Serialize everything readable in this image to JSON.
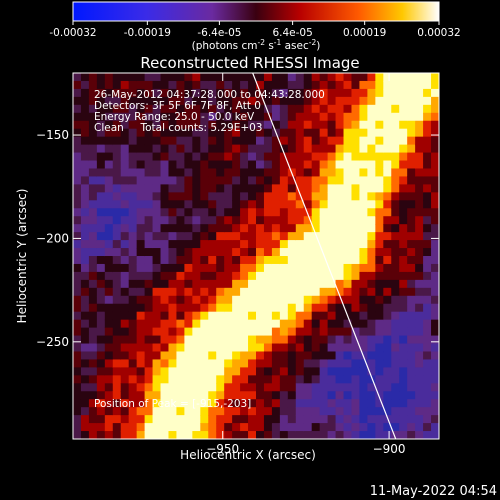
{
  "colorbar": {
    "ticks": [
      {
        "label": "-0.00032",
        "value": -0.00032
      },
      {
        "label": "-0.00019",
        "value": -0.00019
      },
      {
        "label": "-6.4e-05",
        "value": -6.4e-05
      },
      {
        "label": "6.4e-05",
        "value": 6.4e-05
      },
      {
        "label": "0.00019",
        "value": 0.00019
      },
      {
        "label": "0.00032",
        "value": 0.00032
      }
    ],
    "unit_label": {
      "pre": "(photons cm",
      "sup1": "-2",
      "mid1": " s",
      "sup2": "-1",
      "mid2": " asec",
      "sup3": "-2",
      "post": ")"
    }
  },
  "chart_data": {
    "type": "heatmap",
    "title": "Reconstructed RHESSI Image",
    "xlabel": "Heliocentric X (arcsec)",
    "ylabel": "Heliocentric Y (arcsec)",
    "xlim": [
      -995,
      -885
    ],
    "ylim": [
      -297,
      -120
    ],
    "xticks": [
      -950,
      -900,
      -850
    ],
    "yticks": [
      -150,
      -200,
      -250
    ],
    "grid": false,
    "info_lines": [
      "26-May-2012 04:37:28.000 to 04:43:28.000",
      "Detectors: 3F 5F 6F 7F 8F, Att 0",
      "Energy Range: 25.0 - 50.0 keV",
      "Clean     Total counts: 5.29E+03"
    ],
    "peak_label": "Position of Peak = [-915,-203]",
    "peak": {
      "x": -915,
      "y": -203
    },
    "limb_line": {
      "x": [
        -941,
        -898
      ],
      "y": [
        -120,
        -297
      ]
    },
    "emission_ridge": [
      [
        -965,
        -297
      ],
      [
        -960,
        -268
      ],
      [
        -950,
        -248
      ],
      [
        -930,
        -222
      ],
      [
        -915,
        -203
      ],
      [
        -910,
        -178
      ],
      [
        -902,
        -148
      ],
      [
        -894,
        -125
      ]
    ]
  },
  "timestamp": "11-May-2022 04:54"
}
